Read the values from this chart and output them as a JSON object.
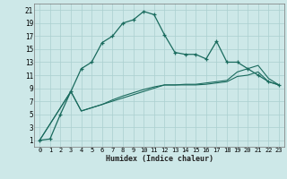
{
  "xlabel": "Humidex (Indice chaleur)",
  "background_color": "#cde8e8",
  "grid_color": "#aacfcf",
  "line_color": "#1a6b5e",
  "xlim": [
    -0.5,
    23.5
  ],
  "ylim": [
    0,
    22
  ],
  "xticks": [
    0,
    1,
    2,
    3,
    4,
    5,
    6,
    7,
    8,
    9,
    10,
    11,
    12,
    13,
    14,
    15,
    16,
    17,
    18,
    19,
    20,
    21,
    22,
    23
  ],
  "yticks": [
    1,
    3,
    5,
    7,
    9,
    11,
    13,
    15,
    17,
    19,
    21
  ],
  "line1_x": [
    0,
    1,
    2,
    3,
    4,
    5,
    6,
    7,
    8,
    9,
    10,
    11,
    12,
    13,
    14,
    15,
    16,
    17,
    18,
    19,
    20,
    21,
    22,
    23
  ],
  "line1_y": [
    1,
    1.2,
    5,
    8.5,
    12,
    13,
    16,
    17,
    19,
    19.5,
    20.8,
    20.3,
    17.2,
    14.5,
    14.2,
    14.2,
    13.5,
    16.2,
    13.0,
    13.0,
    12.0,
    11.0,
    10.0,
    9.5
  ],
  "line2_x": [
    0,
    3,
    4,
    5,
    6,
    7,
    8,
    9,
    10,
    11,
    12,
    13,
    14,
    15,
    16,
    17,
    18,
    19,
    20,
    21,
    22,
    23
  ],
  "line2_y": [
    1,
    8.5,
    5.5,
    6.0,
    6.5,
    7.2,
    7.8,
    8.3,
    8.8,
    9.2,
    9.5,
    9.5,
    9.6,
    9.6,
    9.8,
    10.0,
    10.2,
    11.5,
    12.0,
    12.5,
    10.5,
    9.5
  ],
  "line3_x": [
    0,
    3,
    4,
    5,
    6,
    7,
    8,
    9,
    10,
    11,
    12,
    13,
    14,
    15,
    16,
    17,
    18,
    19,
    20,
    21,
    22,
    23
  ],
  "line3_y": [
    1,
    8.5,
    5.5,
    6.0,
    6.5,
    7.0,
    7.5,
    8.0,
    8.5,
    9.0,
    9.5,
    9.5,
    9.5,
    9.5,
    9.6,
    9.8,
    10.0,
    10.8,
    11.0,
    11.5,
    10.0,
    9.5
  ],
  "xtick_fontsize": 5.0,
  "ytick_fontsize": 5.5,
  "xlabel_fontsize": 6.0
}
